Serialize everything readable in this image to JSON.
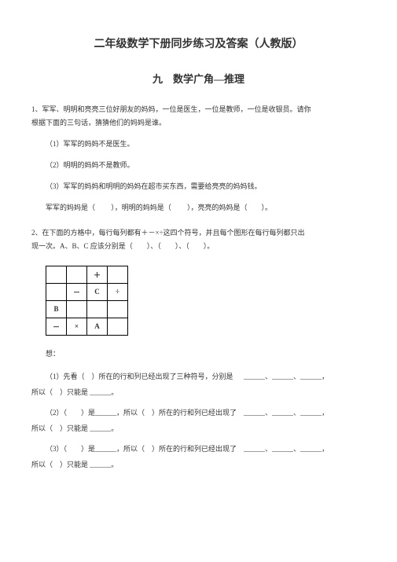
{
  "main_title": "二年级数学下册同步练习及答案（人教版）",
  "sub_title": "九　数学广角—推理",
  "q1": {
    "intro_line1": "1、军军、明明和亮亮三位好朋友的妈妈，一位是医生，一位是教师，一位是收银员。请你",
    "intro_line2": "根据下面的三句话，猜猜他们的妈妈是谁。",
    "item1": "（1）军军的妈妈不是医生。",
    "item2": "（2）明明的妈妈不是教师。",
    "item3": "（3）军军的妈妈和明明的妈妈在超市买东西，需要给亮亮的妈妈钱。",
    "fill_a": "军军的妈妈是（",
    "fill_b": "），明明的妈妈是（",
    "fill_c": "），亮亮的妈妈是（",
    "fill_d": "）。"
  },
  "q2": {
    "intro_line1": "2、在下面的方格中，每行每列都有＋－×÷这四个符号，并且每个图形在每行每列都只出",
    "intro_line2": "现一次。A、B、C 应该分别是（　　）、（　　）、（　　）。",
    "grid": {
      "r1": [
        "",
        "",
        "＋",
        ""
      ],
      "r2": [
        "",
        "－",
        "C",
        "÷"
      ],
      "r3": [
        "B",
        "",
        "",
        ""
      ],
      "r4": [
        "－",
        "×",
        "A",
        ""
      ]
    },
    "think": "想：",
    "step1a": "（1）先看（　）所在的行和列已经出现了三种符号，分别是",
    "step1b": "所以（　）只能是 ______。",
    "step2a": "（2）（　　）是______，所以（　）所在的行和列已经出现了",
    "step2b": "所以（　）只能是 ______。",
    "step3a": "（3）（　　）是______，所以（　）所在的行和列已经出现了",
    "step3b": "所以（　）只能是 ______。",
    "sep": "______、______、______，",
    "sep2": "______、______、______，"
  },
  "colors": {
    "text": "#333333",
    "bg": "#ffffff",
    "border": "#000000"
  }
}
